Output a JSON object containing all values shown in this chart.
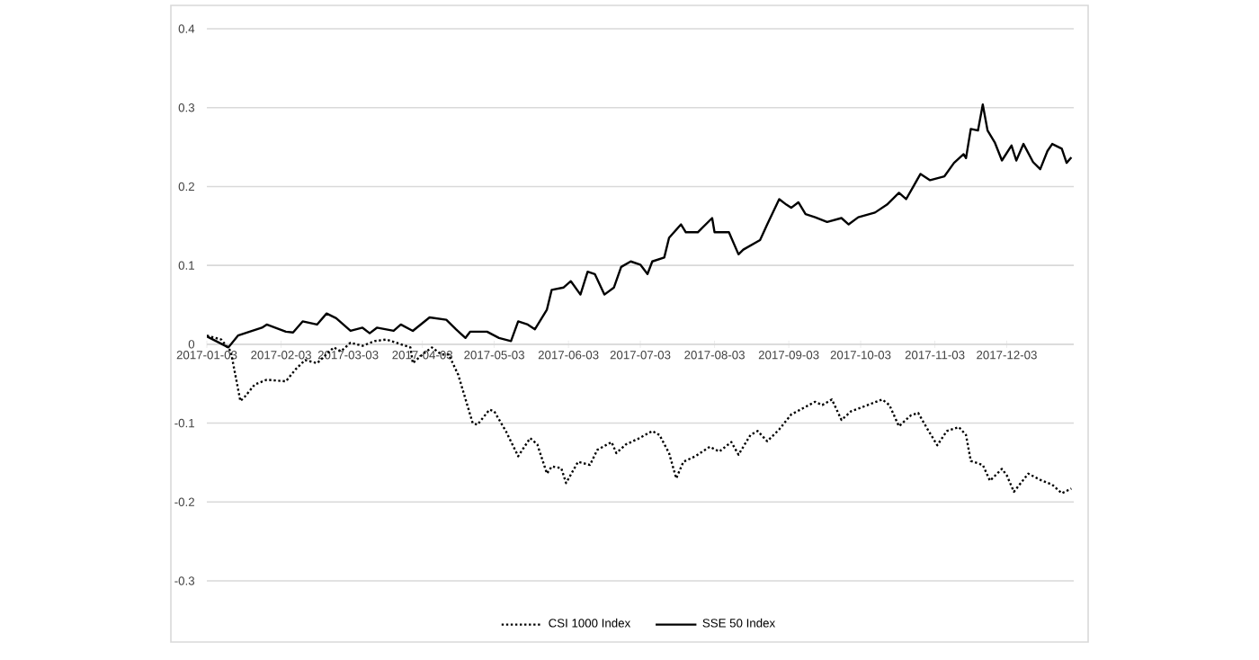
{
  "chart_data": {
    "type": "line",
    "xlim": [
      "2017-01-03",
      "2017-12-31"
    ],
    "xticks": [
      "2017-01-03",
      "2017-02-03",
      "2017-03-03",
      "2017-04-03",
      "2017-05-03",
      "2017-06-03",
      "2017-07-03",
      "2017-08-03",
      "2017-09-03",
      "2017-10-03",
      "2017-11-03",
      "2017-12-03"
    ],
    "ylim": [
      -0.3,
      0.4
    ],
    "yticks": [
      -0.3,
      -0.2,
      -0.1,
      0,
      0.1,
      0.2,
      0.3,
      0.4
    ],
    "grid": "y",
    "legend": "bottom",
    "series": [
      {
        "name": "CSI 1000 Index",
        "color": "#000000",
        "line_style": "dotted",
        "x": [
          "2017-01-03",
          "2017-01-09",
          "2017-01-13",
          "2017-01-17",
          "2017-01-19",
          "2017-01-23",
          "2017-01-28",
          "2017-02-05",
          "2017-02-09",
          "2017-02-13",
          "2017-02-18",
          "2017-02-25",
          "2017-02-28",
          "2017-03-04",
          "2017-03-09",
          "2017-03-14",
          "2017-03-19",
          "2017-03-24",
          "2017-03-29",
          "2017-03-30",
          "2017-04-03",
          "2017-04-07",
          "2017-04-11",
          "2017-04-14",
          "2017-04-18",
          "2017-04-24",
          "2017-04-26",
          "2017-05-01",
          "2017-05-03",
          "2017-05-08",
          "2017-05-13",
          "2017-05-18",
          "2017-05-21",
          "2017-05-25",
          "2017-05-27",
          "2017-05-31",
          "2017-06-02",
          "2017-06-07",
          "2017-06-12",
          "2017-06-15",
          "2017-06-21",
          "2017-06-23",
          "2017-06-27",
          "2017-07-02",
          "2017-07-08",
          "2017-07-11",
          "2017-07-15",
          "2017-07-18",
          "2017-07-21",
          "2017-07-26",
          "2017-08-01",
          "2017-08-05",
          "2017-08-10",
          "2017-08-13",
          "2017-08-18",
          "2017-08-21",
          "2017-08-25",
          "2017-08-30",
          "2017-09-04",
          "2017-09-09",
          "2017-09-14",
          "2017-09-17",
          "2017-09-21",
          "2017-09-25",
          "2017-09-29",
          "2017-10-06",
          "2017-10-12",
          "2017-10-15",
          "2017-10-19",
          "2017-10-24",
          "2017-10-27",
          "2017-10-31",
          "2017-11-04",
          "2017-11-08",
          "2017-11-13",
          "2017-11-16",
          "2017-11-18",
          "2017-11-23",
          "2017-11-26",
          "2017-12-01",
          "2017-12-03",
          "2017-12-06",
          "2017-12-12",
          "2017-12-17",
          "2017-12-22",
          "2017-12-26",
          "2017-12-30"
        ],
        "values": [
          0.011,
          0.006,
          -0.009,
          -0.072,
          -0.066,
          -0.051,
          -0.045,
          -0.047,
          -0.032,
          -0.02,
          -0.024,
          -0.004,
          -0.009,
          0.002,
          -0.002,
          0.004,
          0.006,
          0.001,
          -0.004,
          -0.024,
          -0.013,
          -0.004,
          -0.013,
          -0.013,
          -0.039,
          -0.1,
          -0.102,
          -0.083,
          -0.085,
          -0.111,
          -0.142,
          -0.119,
          -0.127,
          -0.164,
          -0.155,
          -0.157,
          -0.176,
          -0.149,
          -0.153,
          -0.134,
          -0.124,
          -0.138,
          -0.127,
          -0.12,
          -0.11,
          -0.115,
          -0.138,
          -0.17,
          -0.149,
          -0.142,
          -0.13,
          -0.136,
          -0.124,
          -0.14,
          -0.115,
          -0.11,
          -0.123,
          -0.108,
          -0.089,
          -0.081,
          -0.073,
          -0.077,
          -0.07,
          -0.096,
          -0.085,
          -0.077,
          -0.07,
          -0.077,
          -0.104,
          -0.09,
          -0.087,
          -0.108,
          -0.128,
          -0.11,
          -0.105,
          -0.115,
          -0.148,
          -0.153,
          -0.173,
          -0.158,
          -0.166,
          -0.187,
          -0.164,
          -0.172,
          -0.178,
          -0.189,
          -0.183
        ]
      },
      {
        "name": "SSE 50 Index",
        "color": "#000000",
        "line_style": "solid",
        "x": [
          "2017-01-03",
          "2017-01-12",
          "2017-01-16",
          "2017-01-26",
          "2017-01-28",
          "2017-02-05",
          "2017-02-08",
          "2017-02-12",
          "2017-02-18",
          "2017-02-22",
          "2017-02-26",
          "2017-03-04",
          "2017-03-09",
          "2017-03-12",
          "2017-03-15",
          "2017-03-22",
          "2017-03-25",
          "2017-03-30",
          "2017-04-06",
          "2017-04-13",
          "2017-04-17",
          "2017-04-21",
          "2017-04-23",
          "2017-04-30",
          "2017-05-05",
          "2017-05-10",
          "2017-05-13",
          "2017-05-17",
          "2017-05-20",
          "2017-05-25",
          "2017-05-27",
          "2017-06-01",
          "2017-06-04",
          "2017-06-08",
          "2017-06-11",
          "2017-06-14",
          "2017-06-18",
          "2017-06-22",
          "2017-06-25",
          "2017-06-29",
          "2017-07-03",
          "2017-07-06",
          "2017-07-08",
          "2017-07-13",
          "2017-07-15",
          "2017-07-20",
          "2017-07-22",
          "2017-07-27",
          "2017-08-02",
          "2017-08-03",
          "2017-08-09",
          "2017-08-13",
          "2017-08-15",
          "2017-08-22",
          "2017-08-25",
          "2017-08-30",
          "2017-09-02",
          "2017-09-04",
          "2017-09-07",
          "2017-09-10",
          "2017-09-14",
          "2017-09-19",
          "2017-09-25",
          "2017-09-28",
          "2017-10-02",
          "2017-10-09",
          "2017-10-14",
          "2017-10-19",
          "2017-10-22",
          "2017-10-28",
          "2017-11-01",
          "2017-11-07",
          "2017-11-11",
          "2017-11-15",
          "2017-11-16",
          "2017-11-18",
          "2017-11-21",
          "2017-11-23",
          "2017-11-25",
          "2017-11-28",
          "2017-12-01",
          "2017-12-05",
          "2017-12-07",
          "2017-12-10",
          "2017-12-14",
          "2017-12-17",
          "2017-12-20",
          "2017-12-22",
          "2017-12-26",
          "2017-12-28",
          "2017-12-30"
        ],
        "values": [
          0.01,
          -0.004,
          0.011,
          0.021,
          0.025,
          0.016,
          0.015,
          0.029,
          0.025,
          0.039,
          0.033,
          0.017,
          0.021,
          0.014,
          0.021,
          0.017,
          0.025,
          0.017,
          0.034,
          0.031,
          0.019,
          0.008,
          0.016,
          0.016,
          0.008,
          0.004,
          0.029,
          0.025,
          0.019,
          0.044,
          0.069,
          0.072,
          0.08,
          0.063,
          0.092,
          0.089,
          0.063,
          0.072,
          0.098,
          0.105,
          0.101,
          0.089,
          0.105,
          0.11,
          0.135,
          0.152,
          0.142,
          0.142,
          0.16,
          0.142,
          0.142,
          0.114,
          0.12,
          0.132,
          0.152,
          0.184,
          0.177,
          0.173,
          0.18,
          0.165,
          0.161,
          0.155,
          0.16,
          0.152,
          0.161,
          0.167,
          0.177,
          0.192,
          0.184,
          0.216,
          0.208,
          0.213,
          0.23,
          0.241,
          0.236,
          0.273,
          0.271,
          0.304,
          0.271,
          0.256,
          0.233,
          0.252,
          0.233,
          0.254,
          0.231,
          0.222,
          0.245,
          0.254,
          0.248,
          0.23,
          0.237
        ]
      }
    ]
  }
}
